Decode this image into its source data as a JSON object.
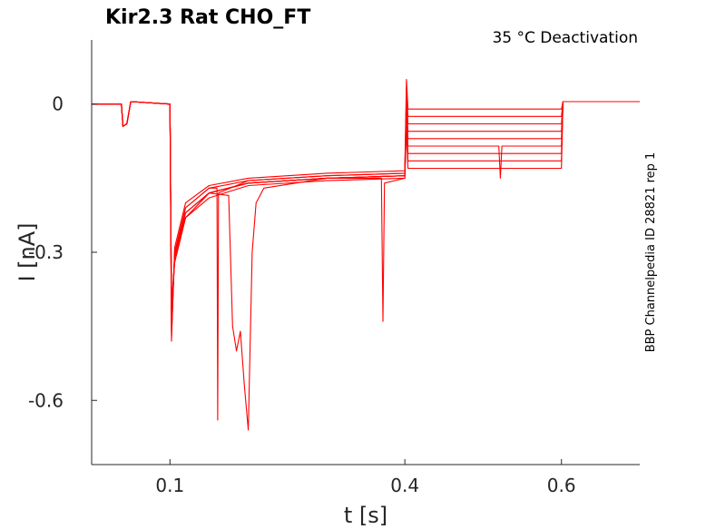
{
  "chart_data": {
    "type": "line",
    "title": "Kir2.3  Rat  CHO_FT",
    "annotation": "35 °C  Deactivation",
    "side_note": "BBP Channelpedia ID 28821 rep 1",
    "xlabel": "t [s]",
    "ylabel": "I [nA]",
    "xlim": [
      0.0,
      0.7
    ],
    "ylim": [
      -0.73,
      0.13
    ],
    "x_ticks": [
      0.1,
      0.4,
      0.6
    ],
    "x_tick_labels": [
      "0.1",
      "0.4",
      "0.6"
    ],
    "y_ticks": [
      0,
      -0.3,
      -0.6
    ],
    "y_tick_labels": [
      "0",
      "-0.3",
      "-0.6"
    ],
    "grid": false,
    "line_color": "#ff0000",
    "series": [
      {
        "x": [
          0.0,
          0.038,
          0.04,
          0.045,
          0.05,
          0.1,
          0.102,
          0.106,
          0.12,
          0.15,
          0.2,
          0.3,
          0.4,
          0.402,
          0.404,
          0.6,
          0.602,
          0.7
        ],
        "y": [
          0.0,
          0.0,
          -0.045,
          -0.04,
          0.005,
          0.0,
          -0.48,
          -0.29,
          -0.2,
          -0.165,
          -0.15,
          -0.14,
          -0.135,
          0.05,
          -0.01,
          -0.01,
          0.005,
          0.005
        ]
      },
      {
        "x": [
          0.0,
          0.038,
          0.04,
          0.045,
          0.05,
          0.1,
          0.102,
          0.106,
          0.12,
          0.15,
          0.16,
          0.161,
          0.162,
          0.2,
          0.3,
          0.4,
          0.402,
          0.404,
          0.6,
          0.602,
          0.7
        ],
        "y": [
          0.0,
          0.0,
          -0.045,
          -0.04,
          0.005,
          0.0,
          -0.47,
          -0.3,
          -0.21,
          -0.17,
          -0.17,
          -0.64,
          -0.18,
          -0.155,
          -0.145,
          -0.14,
          0.03,
          -0.025,
          -0.025,
          0.005,
          0.005
        ]
      },
      {
        "x": [
          0.0,
          0.038,
          0.04,
          0.045,
          0.05,
          0.1,
          0.102,
          0.106,
          0.12,
          0.15,
          0.2,
          0.3,
          0.4,
          0.402,
          0.404,
          0.6,
          0.602,
          0.7
        ],
        "y": [
          0.0,
          0.0,
          -0.045,
          -0.04,
          0.005,
          0.0,
          -0.46,
          -0.3,
          -0.21,
          -0.17,
          -0.155,
          -0.145,
          -0.14,
          0.02,
          -0.04,
          -0.04,
          0.005,
          0.005
        ]
      },
      {
        "x": [
          0.0,
          0.038,
          0.04,
          0.045,
          0.05,
          0.1,
          0.102,
          0.106,
          0.12,
          0.15,
          0.175,
          0.18,
          0.185,
          0.19,
          0.195,
          0.2,
          0.205,
          0.21,
          0.22,
          0.3,
          0.4,
          0.402,
          0.404,
          0.6,
          0.602,
          0.7
        ],
        "y": [
          0.0,
          0.0,
          -0.045,
          -0.04,
          0.005,
          0.0,
          -0.45,
          -0.3,
          -0.22,
          -0.18,
          -0.185,
          -0.45,
          -0.5,
          -0.46,
          -0.57,
          -0.66,
          -0.3,
          -0.2,
          -0.17,
          -0.15,
          -0.145,
          0.0,
          -0.055,
          -0.055,
          0.005,
          0.005
        ]
      },
      {
        "x": [
          0.0,
          0.038,
          0.04,
          0.045,
          0.05,
          0.1,
          0.102,
          0.106,
          0.12,
          0.15,
          0.2,
          0.3,
          0.37,
          0.372,
          0.374,
          0.4,
          0.402,
          0.404,
          0.6,
          0.602,
          0.7
        ],
        "y": [
          0.0,
          0.0,
          -0.045,
          -0.04,
          0.005,
          0.0,
          -0.44,
          -0.31,
          -0.22,
          -0.18,
          -0.16,
          -0.15,
          -0.15,
          -0.44,
          -0.16,
          -0.15,
          0.0,
          -0.07,
          -0.07,
          0.005,
          0.005
        ]
      },
      {
        "x": [
          0.0,
          0.038,
          0.04,
          0.045,
          0.05,
          0.1,
          0.102,
          0.106,
          0.12,
          0.15,
          0.2,
          0.3,
          0.4,
          0.402,
          0.404,
          0.52,
          0.522,
          0.524,
          0.6,
          0.602,
          0.7
        ],
        "y": [
          0.0,
          0.0,
          -0.045,
          -0.04,
          0.005,
          0.0,
          -0.43,
          -0.31,
          -0.22,
          -0.18,
          -0.16,
          -0.15,
          -0.145,
          -0.02,
          -0.085,
          -0.085,
          -0.15,
          -0.085,
          -0.085,
          0.005,
          0.005
        ]
      },
      {
        "x": [
          0.0,
          0.038,
          0.04,
          0.045,
          0.05,
          0.1,
          0.102,
          0.106,
          0.12,
          0.15,
          0.2,
          0.3,
          0.4,
          0.402,
          0.404,
          0.6,
          0.602,
          0.7
        ],
        "y": [
          0.0,
          0.0,
          -0.045,
          -0.04,
          0.005,
          0.0,
          -0.42,
          -0.31,
          -0.23,
          -0.18,
          -0.16,
          -0.15,
          -0.145,
          -0.03,
          -0.1,
          -0.1,
          0.005,
          0.005
        ]
      },
      {
        "x": [
          0.0,
          0.038,
          0.04,
          0.045,
          0.05,
          0.1,
          0.102,
          0.106,
          0.12,
          0.15,
          0.2,
          0.3,
          0.4,
          0.402,
          0.404,
          0.6,
          0.602,
          0.7
        ],
        "y": [
          0.0,
          0.0,
          -0.045,
          -0.04,
          0.005,
          0.0,
          -0.41,
          -0.32,
          -0.23,
          -0.18,
          -0.16,
          -0.15,
          -0.145,
          -0.04,
          -0.115,
          -0.115,
          0.005,
          0.005
        ]
      },
      {
        "x": [
          0.0,
          0.038,
          0.04,
          0.045,
          0.05,
          0.1,
          0.102,
          0.106,
          0.12,
          0.15,
          0.2,
          0.3,
          0.4,
          0.402,
          0.404,
          0.6,
          0.602,
          0.7
        ],
        "y": [
          0.0,
          0.0,
          -0.045,
          -0.04,
          0.005,
          0.0,
          -0.4,
          -0.32,
          -0.23,
          -0.19,
          -0.165,
          -0.155,
          -0.15,
          -0.05,
          -0.13,
          -0.13,
          0.005,
          0.005
        ]
      }
    ]
  }
}
